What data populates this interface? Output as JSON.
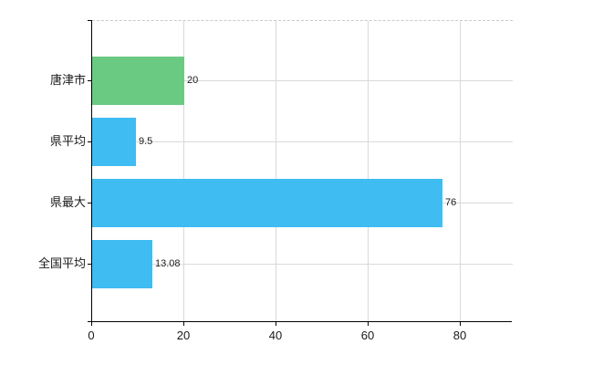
{
  "chart_data": {
    "type": "bar",
    "orientation": "horizontal",
    "title": "",
    "xlabel": "",
    "ylabel": "",
    "categories": [
      "唐津市",
      "県平均",
      "県最大",
      "全国平均"
    ],
    "values": [
      20,
      9.5,
      76,
      13.08
    ],
    "value_labels": [
      "20",
      "9.5",
      "76",
      "13.08"
    ],
    "bar_colors": [
      "#6aca82",
      "#3fbcf2",
      "#3fbcf2",
      "#3fbcf2"
    ],
    "x_ticks": [
      0,
      20,
      40,
      60,
      80
    ],
    "x_tick_labels": [
      "0",
      "20",
      "40",
      "60",
      "80"
    ],
    "xlim": [
      0,
      91.3
    ],
    "grid": true,
    "legend": false,
    "colors": {
      "axis": "#000000",
      "gridline": "#d9d9d9",
      "top_gridline_dashed": "#c9c9c9",
      "background": "#ffffff",
      "text": "#1a1a1a",
      "green_bar": "#6aca82",
      "blue_bar": "#3fbcf2"
    }
  }
}
